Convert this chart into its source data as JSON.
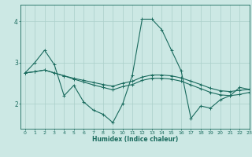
{
  "title": "",
  "xlabel": "Humidex (Indice chaleur)",
  "ylabel": "",
  "bg_color": "#cce8e4",
  "line_color": "#1a6b5e",
  "grid_color": "#aacfca",
  "xlim": [
    -0.5,
    23
  ],
  "ylim": [
    1.4,
    4.4
  ],
  "yticks": [
    2,
    3,
    4
  ],
  "xticks": [
    0,
    1,
    2,
    3,
    4,
    5,
    6,
    7,
    8,
    9,
    10,
    11,
    12,
    13,
    14,
    15,
    16,
    17,
    18,
    19,
    20,
    21,
    22,
    23
  ],
  "series": [
    [
      2.75,
      3.0,
      3.3,
      2.95,
      2.2,
      2.45,
      2.05,
      1.85,
      1.75,
      1.55,
      2.0,
      2.7,
      4.05,
      4.05,
      3.8,
      3.3,
      2.8,
      1.65,
      1.95,
      1.9,
      2.1,
      2.2,
      2.4,
      2.35
    ],
    [
      2.75,
      2.78,
      2.82,
      2.75,
      2.68,
      2.62,
      2.57,
      2.52,
      2.47,
      2.43,
      2.5,
      2.55,
      2.65,
      2.7,
      2.7,
      2.68,
      2.63,
      2.55,
      2.47,
      2.38,
      2.32,
      2.3,
      2.33,
      2.35
    ],
    [
      2.75,
      2.78,
      2.82,
      2.75,
      2.68,
      2.6,
      2.53,
      2.46,
      2.4,
      2.34,
      2.42,
      2.47,
      2.57,
      2.62,
      2.62,
      2.6,
      2.55,
      2.46,
      2.37,
      2.28,
      2.22,
      2.2,
      2.23,
      2.28
    ]
  ]
}
